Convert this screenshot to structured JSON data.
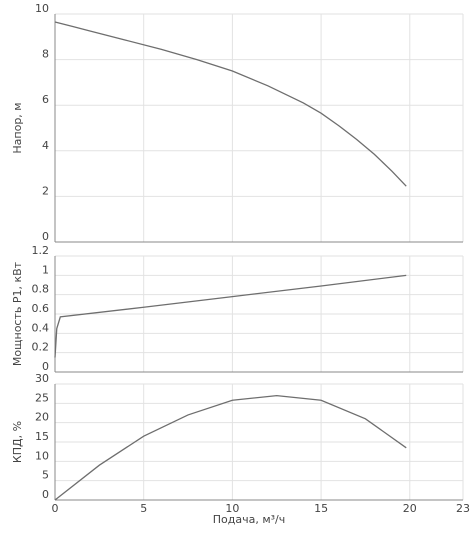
{
  "chart_data": [
    {
      "type": "line",
      "y_label": "Напор, м",
      "x": [
        0,
        1,
        2,
        4,
        6,
        8,
        10,
        12,
        14,
        15,
        16,
        17,
        18,
        19,
        19.8
      ],
      "values": [
        9.65,
        9.45,
        9.25,
        8.85,
        8.45,
        8.0,
        7.5,
        6.85,
        6.1,
        5.65,
        5.1,
        4.5,
        3.85,
        3.1,
        2.45
      ],
      "color": "#6e6e6e",
      "xlim": [
        0,
        23
      ],
      "xticks": [
        0,
        5,
        10,
        15,
        20,
        23
      ],
      "ylim": [
        0,
        10
      ],
      "yticks": [
        0,
        2,
        4,
        6,
        8,
        10
      ],
      "grid": true
    },
    {
      "type": "line",
      "y_label": "Мощность P1, кВт",
      "x": [
        0,
        0.1,
        0.3,
        5,
        10,
        15,
        19.8
      ],
      "values": [
        0.15,
        0.45,
        0.57,
        0.67,
        0.78,
        0.89,
        1.0
      ],
      "color": "#6e6e6e",
      "xlim": [
        0,
        23
      ],
      "xticks": [
        0,
        5,
        10,
        15,
        20,
        23
      ],
      "ylim": [
        0,
        1.2
      ],
      "yticks": [
        0,
        0.2,
        0.4,
        0.6,
        0.8,
        1,
        1.2
      ],
      "grid": true
    },
    {
      "type": "line",
      "y_label": "КПД, %",
      "x_label": "Подача, м³/ч",
      "x": [
        0,
        2.5,
        5,
        7.5,
        10,
        12.5,
        15,
        17.5,
        19.8
      ],
      "values": [
        0,
        9,
        16.5,
        22,
        25.8,
        27,
        25.8,
        21,
        13.5
      ],
      "color": "#6e6e6e",
      "xlim": [
        0,
        23
      ],
      "xticks": [
        0,
        5,
        10,
        15,
        20,
        23
      ],
      "ylim": [
        0,
        30
      ],
      "yticks": [
        0,
        5,
        10,
        15,
        20,
        25,
        30
      ],
      "grid": true
    }
  ]
}
